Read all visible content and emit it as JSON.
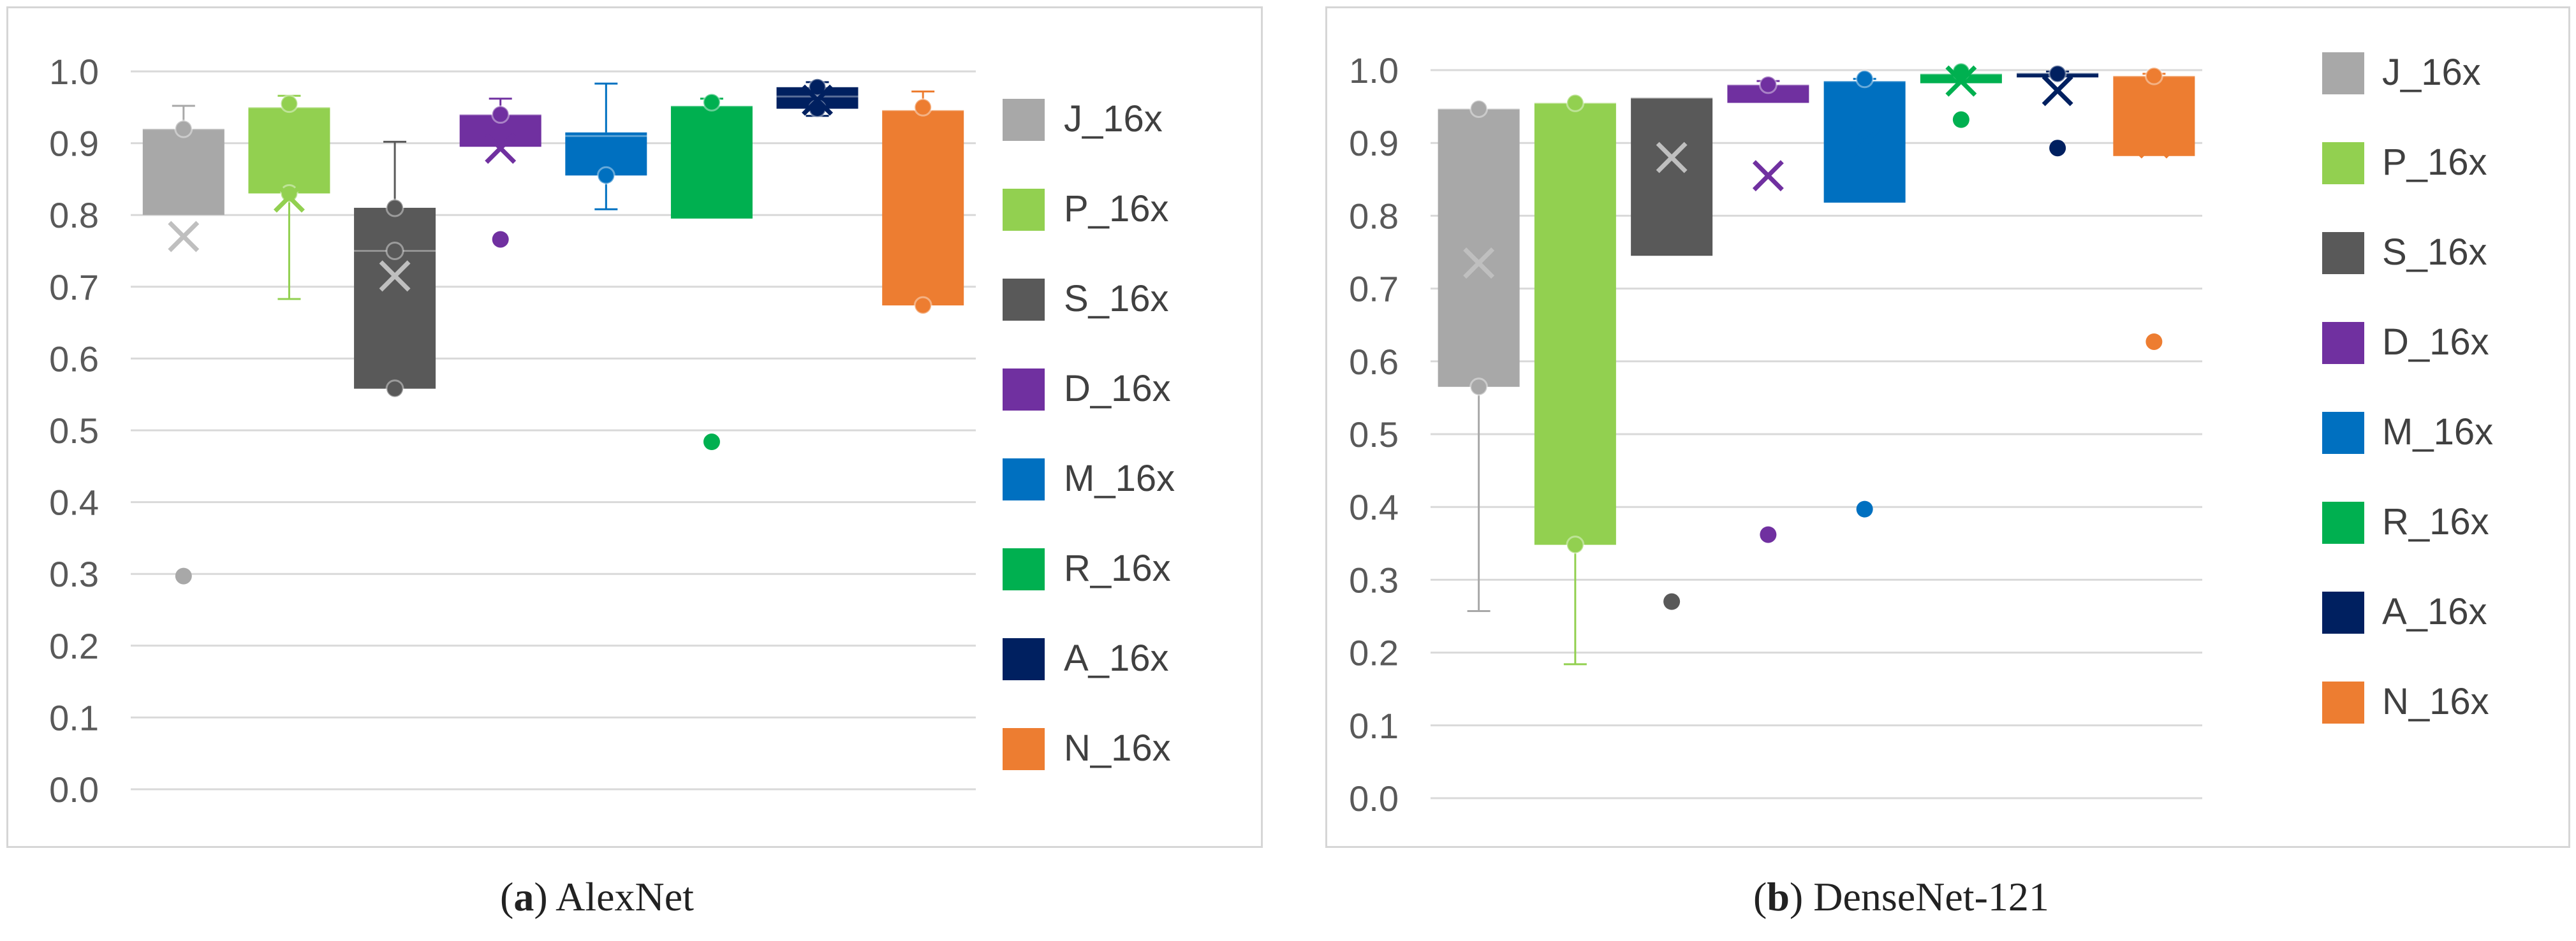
{
  "chart_data": [
    {
      "type": "box",
      "caption_letter": "a",
      "caption_text": "AlexNet",
      "yticks": [
        "0.0",
        "0.1",
        "0.2",
        "0.3",
        "0.4",
        "0.5",
        "0.6",
        "0.7",
        "0.8",
        "0.9",
        "1.0"
      ],
      "ylim": [
        0,
        1
      ],
      "grid": true,
      "legend_position": "right",
      "series": [
        {
          "name": "J_16x",
          "color": "#a8a8a8",
          "q1": 0.8,
          "q3": 0.92,
          "median": 0.92,
          "mean": 0.77,
          "wlow": 0.8,
          "whigh": 0.952,
          "points": [
            0.92
          ],
          "outliers": [
            0.297
          ]
        },
        {
          "name": "P_16x",
          "color": "#92d050",
          "q1": 0.83,
          "q3": 0.95,
          "median": 0.95,
          "mean": 0.825,
          "wlow": 0.683,
          "whigh": 0.966,
          "points": [
            0.955,
            0.83
          ],
          "outliers": []
        },
        {
          "name": "S_16x",
          "color": "#595959",
          "q1": 0.558,
          "q3": 0.81,
          "median": 0.75,
          "mean": 0.715,
          "wlow": 0.558,
          "whigh": 0.902,
          "points": [
            0.81,
            0.75,
            0.558
          ],
          "outliers": []
        },
        {
          "name": "D_16x",
          "color": "#7030a0",
          "q1": 0.895,
          "q3": 0.94,
          "median": 0.94,
          "mean": 0.893,
          "wlow": 0.895,
          "whigh": 0.962,
          "points": [
            0.94
          ],
          "outliers": [
            0.766
          ]
        },
        {
          "name": "M_16x",
          "color": "#0070c0",
          "q1": 0.855,
          "q3": 0.915,
          "median": 0.91,
          "mean": 0.88,
          "wlow": 0.808,
          "whigh": 0.983,
          "points": [
            0.855
          ],
          "outliers": []
        },
        {
          "name": "R_16x",
          "color": "#00b050",
          "q1": 0.795,
          "q3": 0.952,
          "median": 0.952,
          "mean": 0.87,
          "wlow": 0.795,
          "whigh": 0.962,
          "points": [
            0.957
          ],
          "outliers": [
            0.484
          ]
        },
        {
          "name": "A_16x",
          "color": "#002060",
          "q1": 0.948,
          "q3": 0.978,
          "median": 0.965,
          "mean": 0.96,
          "wlow": 0.938,
          "whigh": 0.985,
          "points": [
            0.978,
            0.948
          ],
          "outliers": []
        },
        {
          "name": "N_16x",
          "color": "#ed7d31",
          "q1": 0.674,
          "q3": 0.946,
          "median": 0.946,
          "mean": 0.8,
          "wlow": 0.674,
          "whigh": 0.972,
          "points": [
            0.95,
            0.674
          ],
          "outliers": []
        }
      ]
    },
    {
      "type": "box",
      "caption_letter": "b",
      "caption_text": "DenseNet-121",
      "yticks": [
        "0.0",
        "0.1",
        "0.2",
        "0.3",
        "0.4",
        "0.5",
        "0.6",
        "0.7",
        "0.8",
        "0.9",
        "1.0"
      ],
      "ylim": [
        0,
        1
      ],
      "grid": true,
      "legend_position": "right",
      "series": [
        {
          "name": "J_16x",
          "color": "#a8a8a8",
          "q1": 0.565,
          "q3": 0.947,
          "median": 0.947,
          "mean": 0.735,
          "wlow": 0.257,
          "whigh": 0.947,
          "points": [
            0.947,
            0.565
          ],
          "outliers": []
        },
        {
          "name": "P_16x",
          "color": "#92d050",
          "q1": 0.348,
          "q3": 0.955,
          "median": 0.955,
          "mean": 0.62,
          "wlow": 0.184,
          "whigh": 0.955,
          "points": [
            0.955,
            0.348
          ],
          "outliers": []
        },
        {
          "name": "S_16x",
          "color": "#595959",
          "q1": 0.745,
          "q3": 0.962,
          "median": 0.962,
          "mean": 0.88,
          "wlow": 0.745,
          "whigh": 0.962,
          "points": [],
          "outliers": [
            0.27
          ]
        },
        {
          "name": "D_16x",
          "color": "#7030a0",
          "q1": 0.955,
          "q3": 0.98,
          "median": 0.98,
          "mean": 0.855,
          "wlow": 0.955,
          "whigh": 0.985,
          "points": [
            0.98
          ],
          "outliers": [
            0.362
          ]
        },
        {
          "name": "M_16x",
          "color": "#0070c0",
          "q1": 0.818,
          "q3": 0.985,
          "median": 0.985,
          "mean": 0.9,
          "wlow": 0.818,
          "whigh": 0.988,
          "points": [
            0.988
          ],
          "outliers": [
            0.397
          ]
        },
        {
          "name": "R_16x",
          "color": "#00b050",
          "q1": 0.982,
          "q3": 0.995,
          "median": 0.995,
          "mean": 0.985,
          "wlow": 0.982,
          "whigh": 0.998,
          "points": [
            0.998
          ],
          "outliers": [
            0.932
          ]
        },
        {
          "name": "A_16x",
          "color": "#002060",
          "q1": 0.99,
          "q3": 0.996,
          "median": 0.996,
          "mean": 0.972,
          "wlow": 0.99,
          "whigh": 0.998,
          "points": [
            0.995
          ],
          "outliers": [
            0.893
          ]
        },
        {
          "name": "N_16x",
          "color": "#ed7d31",
          "q1": 0.882,
          "q3": 0.992,
          "median": 0.992,
          "mean": 0.9,
          "wlow": 0.882,
          "whigh": 0.995,
          "points": [
            0.992
          ],
          "outliers": [
            0.627
          ]
        }
      ]
    }
  ]
}
